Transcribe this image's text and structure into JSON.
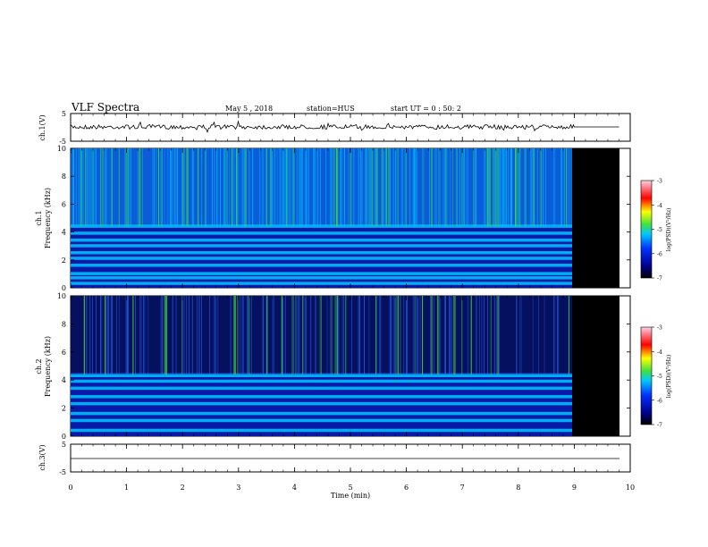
{
  "header": {
    "title": "VLF Spectra",
    "date": "May 5 , 2018",
    "station": "station=HUS",
    "start": "start UT = 0 : 50: 2"
  },
  "colors": {
    "dark_blue": "#00008b",
    "blue": "#0030ff",
    "cyan": "#00c8ff",
    "green": "#40e040",
    "yellow": "#ffff00",
    "red": "#ff0000",
    "pink": "#ffd0e0",
    "black": "#000000"
  },
  "chart_data": [
    {
      "type": "line",
      "panel": "ch1-waveform",
      "ylabel": "ch.1(V)",
      "ylim": [
        -5,
        5
      ],
      "yticks": [
        "5",
        "-5"
      ],
      "data_end_min": 9.0,
      "note_values": "noisy trace near 0 V from 0 to 9 min, flat at 0 V from 9 to 9.8 min"
    },
    {
      "type": "heatmap",
      "panel": "ch1-spectrogram",
      "ylabel": "ch.1 Frequency (kHz)",
      "ylim": [
        0,
        10
      ],
      "yticks": [
        "0",
        "2",
        "4",
        "6",
        "8",
        "10"
      ],
      "data_end_min": 9.0,
      "colorbar": {
        "label": "log(PSD)(V²/Hz)",
        "range": [
          -7,
          -3
        ],
        "ticks": [
          "-3",
          "-4",
          "-5",
          "-6",
          "-7"
        ]
      },
      "bands_khz": [
        0.3,
        0.7,
        1.0,
        1.6,
        2.1,
        2.5,
        3.0,
        3.4,
        3.9,
        4.4
      ],
      "background_above_4_5_khz": "cyan/green noise with frequent vertical spikes"
    },
    {
      "type": "heatmap",
      "panel": "ch2-spectrogram",
      "ylabel": "ch.2 Frequency (kHz)",
      "ylim": [
        0,
        10
      ],
      "yticks": [
        "0",
        "2",
        "4",
        "6",
        "8",
        "10"
      ],
      "data_end_min": 9.0,
      "colorbar": {
        "label": "log(PSD)(V²/Hz)",
        "range": [
          -7,
          -3
        ],
        "ticks": [
          "-3",
          "-4",
          "-5",
          "-6",
          "-7"
        ]
      },
      "bands_khz": [
        0.4,
        1.1,
        1.6,
        2.3,
        2.8,
        3.4,
        3.9,
        4.3
      ],
      "background_above_4_5_khz": "dark blue with scattered vertical spikes"
    },
    {
      "type": "line",
      "panel": "ch3-waveform",
      "ylabel": "ch.3(V)",
      "ylim": [
        -5,
        5
      ],
      "yticks": [
        "5",
        "-5"
      ],
      "x": [
        0,
        9.8
      ],
      "y": [
        0,
        0
      ]
    }
  ],
  "xaxis": {
    "label": "Time (min)",
    "range": [
      0,
      10
    ],
    "ticks": [
      "0",
      "1",
      "2",
      "3",
      "4",
      "5",
      "6",
      "7",
      "8",
      "9",
      "10"
    ]
  }
}
